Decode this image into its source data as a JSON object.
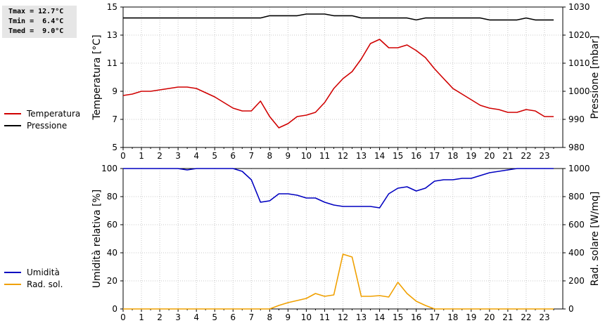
{
  "stats": {
    "tmax": "Tmax = 12.7°C",
    "tmin": "Tmin =  6.4°C",
    "tmed": "Tmed =  9.0°C"
  },
  "colors": {
    "temperatura": "#d00000",
    "pressione": "#000000",
    "umidita": "#0000c0",
    "rad_sol": "#f0a000"
  },
  "chart_data": [
    {
      "type": "line",
      "x_ticks": [
        "0",
        "1",
        "2",
        "3",
        "4",
        "5",
        "6",
        "7",
        "8",
        "9",
        "10",
        "11",
        "12",
        "13",
        "14",
        "15",
        "16",
        "17",
        "18",
        "19",
        "20",
        "21",
        "22",
        "23"
      ],
      "xlim": [
        0,
        24
      ],
      "ylabel": "Temperatura [°C]",
      "ylabel2": "Pressione [mbar]",
      "ylim": [
        5,
        15
      ],
      "y_ticks": [
        "5",
        "7",
        "9",
        "11",
        "13",
        "15"
      ],
      "ylim2": [
        980,
        1030
      ],
      "y2_ticks": [
        "980",
        "990",
        "1000",
        "1010",
        "1020",
        "1030"
      ],
      "grid": true,
      "legend_position": "left",
      "series": [
        {
          "name": "Temperatura",
          "axis": "left",
          "x": [
            0,
            0.5,
            1,
            1.5,
            2,
            2.5,
            3,
            3.5,
            4,
            4.5,
            5,
            5.5,
            6,
            6.5,
            7,
            7.5,
            8,
            8.5,
            9,
            9.5,
            10,
            10.5,
            11,
            11.5,
            12,
            12.5,
            13,
            13.5,
            14,
            14.5,
            15,
            15.5,
            16,
            16.5,
            17,
            17.5,
            18,
            18.5,
            19,
            19.5,
            20,
            20.5,
            21,
            21.5,
            22,
            22.5,
            23,
            23.5
          ],
          "y": [
            8.7,
            8.8,
            9.0,
            9.0,
            9.1,
            9.2,
            9.3,
            9.3,
            9.2,
            8.9,
            8.6,
            8.2,
            7.8,
            7.6,
            7.6,
            8.3,
            7.2,
            6.4,
            6.7,
            7.2,
            7.3,
            7.5,
            8.2,
            9.2,
            9.9,
            10.4,
            11.3,
            12.4,
            12.7,
            12.1,
            12.1,
            12.3,
            11.9,
            11.4,
            10.6,
            9.9,
            9.2,
            8.8,
            8.4,
            8.0,
            7.8,
            7.7,
            7.5,
            7.5,
            7.7,
            7.6,
            7.2,
            7.2
          ]
        },
        {
          "name": "Pressione",
          "axis": "right",
          "x": [
            0,
            0.5,
            1,
            1.5,
            2,
            2.5,
            3,
            3.5,
            4,
            4.5,
            5,
            5.5,
            6,
            6.5,
            7,
            7.5,
            8,
            8.5,
            9,
            9.5,
            10,
            10.5,
            11,
            11.5,
            12,
            12.5,
            13,
            13.5,
            14,
            14.5,
            15,
            15.5,
            16,
            16.5,
            17,
            17.5,
            18,
            18.5,
            19,
            19.5,
            20,
            20.5,
            21,
            21.5,
            22,
            22.5,
            23,
            23.5
          ],
          "y": [
            1026.1,
            1026.1,
            1026.1,
            1026.1,
            1026.1,
            1026.1,
            1026.1,
            1026.1,
            1026.1,
            1026.1,
            1026.1,
            1026.1,
            1026.1,
            1026.1,
            1026.1,
            1026.1,
            1026.9,
            1026.9,
            1026.9,
            1026.9,
            1027.5,
            1027.5,
            1027.5,
            1026.9,
            1026.9,
            1026.9,
            1026.1,
            1026.1,
            1026.1,
            1026.1,
            1026.1,
            1026.1,
            1025.4,
            1026.1,
            1026.1,
            1026.1,
            1026.1,
            1026.1,
            1026.1,
            1026.1,
            1025.4,
            1025.4,
            1025.4,
            1025.4,
            1026.1,
            1025.4,
            1025.4,
            1025.4
          ]
        }
      ]
    },
    {
      "type": "line",
      "x_ticks": [
        "0",
        "1",
        "2",
        "3",
        "4",
        "5",
        "6",
        "7",
        "8",
        "9",
        "10",
        "11",
        "12",
        "13",
        "14",
        "15",
        "16",
        "17",
        "18",
        "19",
        "20",
        "21",
        "22",
        "23"
      ],
      "xlim": [
        0,
        24
      ],
      "ylabel": "Umidità relativa [%]",
      "ylabel2": "Rad. solare [W/mq]",
      "ylim": [
        0,
        100
      ],
      "y_ticks": [
        "0",
        "20",
        "40",
        "60",
        "80",
        "100"
      ],
      "ylim2": [
        0,
        1000
      ],
      "y2_ticks": [
        "0",
        "200",
        "400",
        "600",
        "800",
        "1000"
      ],
      "grid": true,
      "legend_position": "left",
      "series": [
        {
          "name": "Umidità",
          "axis": "left",
          "x": [
            0,
            0.5,
            1,
            1.5,
            2,
            2.5,
            3,
            3.5,
            4,
            4.5,
            5,
            5.5,
            6,
            6.5,
            7,
            7.5,
            8,
            8.5,
            9,
            9.5,
            10,
            10.5,
            11,
            11.5,
            12,
            12.5,
            13,
            13.5,
            14,
            14.5,
            15,
            15.5,
            16,
            16.5,
            17,
            17.5,
            18,
            18.5,
            19,
            19.5,
            20,
            20.5,
            21,
            21.5,
            22,
            22.5,
            23,
            23.5
          ],
          "y": [
            100,
            100,
            100,
            100,
            100,
            100,
            100,
            99,
            100,
            100,
            100,
            100,
            100,
            98,
            92,
            76,
            77,
            82,
            82,
            81,
            79,
            79,
            76,
            74,
            73,
            73,
            73,
            73,
            72,
            82,
            86,
            87,
            84,
            86,
            91,
            92,
            92,
            93,
            93,
            95,
            97,
            98,
            99,
            100,
            100,
            100,
            100,
            100
          ]
        },
        {
          "name": "Rad. sol.",
          "axis": "right",
          "x": [
            0,
            0.5,
            1,
            1.5,
            2,
            2.5,
            3,
            3.5,
            4,
            4.5,
            5,
            5.5,
            6,
            6.5,
            7,
            7.5,
            8,
            8.5,
            9,
            9.5,
            10,
            10.5,
            11,
            11.5,
            12,
            12.5,
            13,
            13.5,
            14,
            14.5,
            15,
            15.5,
            16,
            16.5,
            17,
            17.5,
            18,
            18.5,
            19,
            19.5,
            20,
            20.5,
            21,
            21.5,
            22,
            22.5,
            23,
            23.5
          ],
          "y": [
            0,
            0,
            0,
            0,
            0,
            0,
            0,
            0,
            0,
            0,
            0,
            0,
            0,
            0,
            0,
            0,
            0,
            25,
            45,
            60,
            75,
            110,
            90,
            100,
            390,
            370,
            90,
            90,
            95,
            85,
            190,
            110,
            55,
            25,
            0,
            0,
            0,
            0,
            0,
            0,
            0,
            0,
            0,
            0,
            0,
            0,
            0,
            0
          ]
        }
      ]
    }
  ]
}
